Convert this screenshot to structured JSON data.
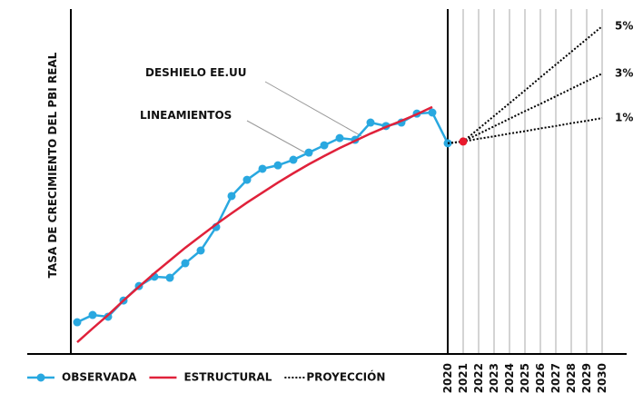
{
  "chart_data": {
    "type": "line",
    "ylabel": "TASA DE CRECIMIENTO DEL PBI REAL",
    "categories": [
      null,
      null,
      null,
      null,
      null,
      null,
      null,
      null,
      null,
      null,
      null,
      null,
      null,
      null,
      null,
      null,
      null,
      null,
      null,
      null,
      null,
      null,
      null,
      null,
      "2020",
      "2021",
      "2022",
      "2023",
      "2024",
      "2025",
      "2026",
      "2027",
      "2028",
      "2029",
      "2030"
    ],
    "ylim": [
      0,
      100
    ],
    "series": [
      {
        "name": "OBSERVADA",
        "color": "#29a8e0",
        "markers": true,
        "values": [
          9.2,
          11.3,
          10.8,
          15.5,
          19.7,
          22.4,
          22.1,
          26.3,
          30,
          36.8,
          45.8,
          50.5,
          53.7,
          54.7,
          56.3,
          58.4,
          60.5,
          62.6,
          62.1,
          67.1,
          66.1,
          67.1,
          69.7,
          70,
          61.1,
          null,
          null,
          null,
          null,
          null,
          null,
          null,
          null,
          null,
          null
        ]
      },
      {
        "name": "ESTRUCTURAL",
        "color": "#e0213a",
        "markers": false,
        "values": [
          3.4,
          7.4,
          11.3,
          15.5,
          19.5,
          23.4,
          27.1,
          30.8,
          34.2,
          37.6,
          40.8,
          43.9,
          46.8,
          49.7,
          52.4,
          55,
          57.4,
          59.7,
          61.8,
          63.9,
          65.8,
          67.6,
          69.5,
          71.6,
          null,
          null,
          null,
          null,
          null,
          null,
          null,
          null,
          null,
          null,
          null
        ]
      },
      {
        "name": "PROYECCIÓN",
        "color": "#000000",
        "dotted": true,
        "start_color": "#e8192c",
        "scenarios": [
          {
            "label": "5%",
            "values": [
              null,
              null,
              null,
              null,
              null,
              null,
              null,
              null,
              null,
              null,
              null,
              null,
              null,
              null,
              null,
              null,
              null,
              null,
              null,
              null,
              null,
              null,
              null,
              null,
              61.1,
              61.6,
              65.3,
              69.0,
              72.7,
              76.4,
              80.2,
              83.9,
              87.6,
              91.3,
              95.0
            ]
          },
          {
            "label": "3%",
            "values": [
              null,
              null,
              null,
              null,
              null,
              null,
              null,
              null,
              null,
              null,
              null,
              null,
              null,
              null,
              null,
              null,
              null,
              null,
              null,
              null,
              null,
              null,
              null,
              null,
              61.1,
              61.6,
              63.8,
              66.0,
              68.2,
              70.4,
              72.5,
              74.7,
              76.9,
              79.1,
              81.3
            ]
          },
          {
            "label": "1%",
            "values": [
              null,
              null,
              null,
              null,
              null,
              null,
              null,
              null,
              null,
              null,
              null,
              null,
              null,
              null,
              null,
              null,
              null,
              null,
              null,
              null,
              null,
              null,
              null,
              null,
              61.1,
              61.6,
              62.4,
              63.1,
              63.9,
              64.6,
              65.4,
              66.1,
              66.9,
              67.6,
              68.4
            ]
          }
        ]
      }
    ],
    "annotations": [
      "DESHIELO EE.UU",
      "LINEAMIENTOS"
    ]
  }
}
